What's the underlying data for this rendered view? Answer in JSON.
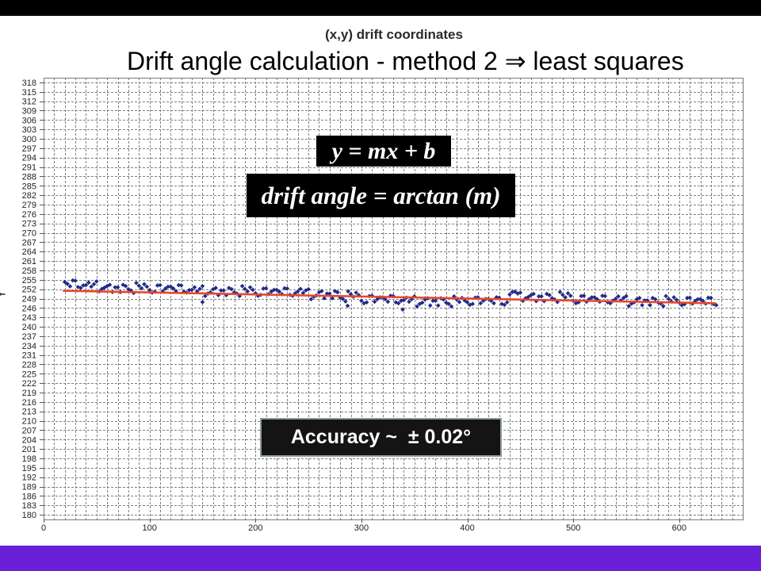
{
  "theme": {
    "top_bar": "#000000",
    "bottom_bar": "#6a1fd8",
    "formula_box_bg": "#000000",
    "accuracy_box_bg": "#141414"
  },
  "slide": {
    "title": "Drift angle calculation - method 2 ⇒ least squares",
    "equation": "y = mx + b",
    "drift_formula": "drift angle = arctan (m)",
    "accuracy": "Accuracy ~  ± 0.02°"
  },
  "chart_data": {
    "type": "scatter",
    "title": "(x,y) drift coordinates",
    "xlabel": "",
    "ylabel": "Y",
    "xlim": [
      0,
      660
    ],
    "ylim": [
      178.5,
      319.5
    ],
    "grid": true,
    "x_minor_step": 10,
    "xticks": [
      0,
      100,
      200,
      300,
      400,
      500,
      600
    ],
    "yticks": [
      318,
      315,
      312,
      309,
      306,
      303,
      300,
      297,
      294,
      291,
      288,
      285,
      282,
      279,
      276,
      273,
      270,
      267,
      264,
      261,
      258,
      255,
      252,
      249,
      246,
      243,
      240,
      237,
      234,
      231,
      228,
      225,
      222,
      219,
      216,
      213,
      210,
      207,
      204,
      201,
      198,
      195,
      192,
      189,
      186,
      183,
      180
    ],
    "colors": {
      "points": "#1f2a8a",
      "trendline": "#e8472d",
      "grid": "#808080"
    },
    "series": [
      {
        "marker": "diamond",
        "points": [
          [
            20,
            254.3
          ],
          [
            22.5,
            253.7
          ],
          [
            25,
            252.9
          ],
          [
            27.5,
            254.8
          ],
          [
            30,
            254.7
          ],
          [
            32.5,
            252.7
          ],
          [
            35,
            252.4
          ],
          [
            37.5,
            253.2
          ],
          [
            40,
            253.3
          ],
          [
            42.5,
            254.1
          ],
          [
            45,
            252.8
          ],
          [
            47.5,
            253.6
          ],
          [
            50,
            254.5
          ],
          [
            52.5,
            251.3
          ],
          [
            55,
            252.1
          ],
          [
            57.5,
            252.5
          ],
          [
            60,
            253.0
          ],
          [
            62.5,
            253.4
          ],
          [
            65,
            251.1
          ],
          [
            67.5,
            252.6
          ],
          [
            70,
            252.6
          ],
          [
            72.5,
            251.1
          ],
          [
            75,
            253.4
          ],
          [
            77.5,
            253.0
          ],
          [
            80,
            252.0
          ],
          [
            82.5,
            251.6
          ],
          [
            85,
            250.8
          ],
          [
            87.5,
            254.0
          ],
          [
            90,
            253.1
          ],
          [
            92.5,
            252.3
          ],
          [
            95,
            253.6
          ],
          [
            97.5,
            252.8
          ],
          [
            100,
            251.7
          ],
          [
            102.5,
            250.9
          ],
          [
            105,
            251.2
          ],
          [
            107.5,
            253.2
          ],
          [
            110,
            253.3
          ],
          [
            112.5,
            251.4
          ],
          [
            115,
            252.2
          ],
          [
            117.5,
            252.8
          ],
          [
            120,
            252.8
          ],
          [
            122.5,
            252.2
          ],
          [
            125,
            251.4
          ],
          [
            127.5,
            253.3
          ],
          [
            130,
            253.2
          ],
          [
            132.5,
            251.2
          ],
          [
            135,
            250.9
          ],
          [
            137.5,
            251.7
          ],
          [
            140,
            251.8
          ],
          [
            142.5,
            252.6
          ],
          [
            145,
            251.3
          ],
          [
            147.5,
            252.1
          ],
          [
            150,
            253.0
          ],
          [
            150,
            247.9
          ],
          [
            152.5,
            249.8
          ],
          [
            155,
            250.6
          ],
          [
            157.5,
            251.0
          ],
          [
            160,
            252.0
          ],
          [
            162.5,
            252.4
          ],
          [
            165,
            250.1
          ],
          [
            167.5,
            251.6
          ],
          [
            170,
            251.6
          ],
          [
            172.5,
            250.1
          ],
          [
            175,
            252.4
          ],
          [
            177.5,
            252.0
          ],
          [
            180,
            251.0
          ],
          [
            182.5,
            250.6
          ],
          [
            185,
            249.8
          ],
          [
            187.5,
            253.0
          ],
          [
            190,
            252.1
          ],
          [
            192.5,
            251.3
          ],
          [
            195,
            252.6
          ],
          [
            197.5,
            251.8
          ],
          [
            200,
            250.7
          ],
          [
            202.5,
            249.9
          ],
          [
            205,
            250.2
          ],
          [
            207.5,
            252.2
          ],
          [
            210,
            252.3
          ],
          [
            212.5,
            250.4
          ],
          [
            215,
            251.2
          ],
          [
            217.5,
            251.8
          ],
          [
            220,
            251.8
          ],
          [
            222.5,
            251.2
          ],
          [
            225,
            250.4
          ],
          [
            227.5,
            252.3
          ],
          [
            230,
            252.2
          ],
          [
            232.5,
            250.2
          ],
          [
            235,
            249.9
          ],
          [
            237.5,
            250.7
          ],
          [
            240,
            251.3
          ],
          [
            242.5,
            252.1
          ],
          [
            245,
            250.8
          ],
          [
            247.5,
            251.6
          ],
          [
            250,
            252.0
          ],
          [
            252.5,
            248.8
          ],
          [
            255,
            249.6
          ],
          [
            257.5,
            250.0
          ],
          [
            260,
            251.0
          ],
          [
            262.5,
            251.4
          ],
          [
            265,
            249.1
          ],
          [
            267.5,
            250.6
          ],
          [
            270,
            250.6
          ],
          [
            272.5,
            249.1
          ],
          [
            275,
            251.4
          ],
          [
            277.5,
            251.0
          ],
          [
            280,
            249.3
          ],
          [
            282.5,
            248.9
          ],
          [
            285,
            248.1
          ],
          [
            287,
            246.7
          ],
          [
            287.5,
            251.3
          ],
          [
            290,
            250.4
          ],
          [
            292.5,
            249.6
          ],
          [
            295,
            250.9
          ],
          [
            297.5,
            250.1
          ],
          [
            300,
            248.3
          ],
          [
            302.5,
            247.5
          ],
          [
            305,
            247.8
          ],
          [
            307.5,
            249.8
          ],
          [
            310,
            249.9
          ],
          [
            312.5,
            248.0
          ],
          [
            315,
            248.8
          ],
          [
            317.5,
            249.4
          ],
          [
            320,
            249.4
          ],
          [
            322.5,
            248.8
          ],
          [
            325,
            248.0
          ],
          [
            327.5,
            249.9
          ],
          [
            330,
            249.8
          ],
          [
            332.5,
            247.8
          ],
          [
            335,
            247.5
          ],
          [
            337.5,
            248.3
          ],
          [
            339,
            245.5
          ],
          [
            340,
            248.5
          ],
          [
            342.5,
            249.3
          ],
          [
            345,
            248.0
          ],
          [
            347.5,
            248.8
          ],
          [
            350,
            249.7
          ],
          [
            352.5,
            246.5
          ],
          [
            355,
            247.3
          ],
          [
            357.5,
            247.7
          ],
          [
            360,
            248.7
          ],
          [
            362.5,
            249.1
          ],
          [
            365,
            246.8
          ],
          [
            367.5,
            248.3
          ],
          [
            370,
            248.3
          ],
          [
            372.5,
            246.8
          ],
          [
            375,
            249.1
          ],
          [
            377.5,
            248.7
          ],
          [
            380,
            247.7
          ],
          [
            382.5,
            247.3
          ],
          [
            385,
            246.5
          ],
          [
            387.5,
            249.7
          ],
          [
            390,
            248.7
          ],
          [
            392.5,
            247.9
          ],
          [
            395,
            249.2
          ],
          [
            397.5,
            248.4
          ],
          [
            400,
            247.8
          ],
          [
            402.5,
            247.0
          ],
          [
            405,
            247.3
          ],
          [
            407.5,
            249.3
          ],
          [
            410,
            249.4
          ],
          [
            412.5,
            247.5
          ],
          [
            415,
            248.3
          ],
          [
            417.5,
            248.9
          ],
          [
            420,
            248.9
          ],
          [
            422.5,
            248.3
          ],
          [
            425,
            247.5
          ],
          [
            427.5,
            249.4
          ],
          [
            430,
            249.3
          ],
          [
            432.5,
            247.3
          ],
          [
            435,
            247.0
          ],
          [
            437.5,
            247.8
          ],
          [
            440,
            250.3
          ],
          [
            442.5,
            251.1
          ],
          [
            445,
            251.2
          ],
          [
            447.5,
            250.6
          ],
          [
            450,
            250.9
          ],
          [
            452.5,
            248.3
          ],
          [
            455,
            249.1
          ],
          [
            457.5,
            249.5
          ],
          [
            460,
            250.1
          ],
          [
            462.5,
            250.5
          ],
          [
            465,
            248.2
          ],
          [
            467.5,
            249.7
          ],
          [
            470,
            249.7
          ],
          [
            472.5,
            248.2
          ],
          [
            475,
            250.5
          ],
          [
            477.5,
            250.1
          ],
          [
            480,
            249.1
          ],
          [
            482.5,
            248.7
          ],
          [
            485,
            247.9
          ],
          [
            487.5,
            251.1
          ],
          [
            490,
            250.2
          ],
          [
            492.5,
            249.4
          ],
          [
            495,
            250.7
          ],
          [
            497.5,
            249.9
          ],
          [
            500,
            248.3
          ],
          [
            502.5,
            247.5
          ],
          [
            505,
            247.8
          ],
          [
            507.5,
            249.8
          ],
          [
            510,
            249.9
          ],
          [
            512.5,
            248.0
          ],
          [
            515,
            248.8
          ],
          [
            517.5,
            249.4
          ],
          [
            520,
            249.4
          ],
          [
            522.5,
            248.8
          ],
          [
            525,
            248.0
          ],
          [
            527.5,
            249.9
          ],
          [
            530,
            249.8
          ],
          [
            532.5,
            247.8
          ],
          [
            535,
            247.5
          ],
          [
            537.5,
            248.3
          ],
          [
            540,
            248.9
          ],
          [
            542.5,
            249.7
          ],
          [
            545,
            248.4
          ],
          [
            547.5,
            249.2
          ],
          [
            550,
            249.8
          ],
          [
            552.5,
            246.6
          ],
          [
            555,
            247.4
          ],
          [
            557.5,
            247.8
          ],
          [
            560,
            248.8
          ],
          [
            562.5,
            249.2
          ],
          [
            565,
            246.9
          ],
          [
            567.5,
            248.4
          ],
          [
            570,
            248.4
          ],
          [
            572.5,
            246.9
          ],
          [
            575,
            249.2
          ],
          [
            577.5,
            248.8
          ],
          [
            580,
            247.8
          ],
          [
            582.5,
            247.4
          ],
          [
            585,
            246.6
          ],
          [
            587.5,
            249.8
          ],
          [
            590,
            248.9
          ],
          [
            592.5,
            248.1
          ],
          [
            595,
            249.4
          ],
          [
            597.5,
            248.6
          ],
          [
            600,
            247.7
          ],
          [
            602.5,
            246.9
          ],
          [
            605,
            247.2
          ],
          [
            607.5,
            249.2
          ],
          [
            610,
            249.3
          ],
          [
            612.5,
            247.4
          ],
          [
            615,
            248.2
          ],
          [
            617.5,
            248.8
          ],
          [
            620,
            248.8
          ],
          [
            622.5,
            248.2
          ],
          [
            625,
            247.4
          ],
          [
            627.5,
            249.3
          ],
          [
            630,
            249.2
          ],
          [
            632.5,
            247.2
          ],
          [
            635,
            246.9
          ]
        ]
      }
    ],
    "trendline": {
      "points": [
        [
          19,
          251.5
        ],
        [
          634,
          247.5
        ]
      ]
    }
  }
}
